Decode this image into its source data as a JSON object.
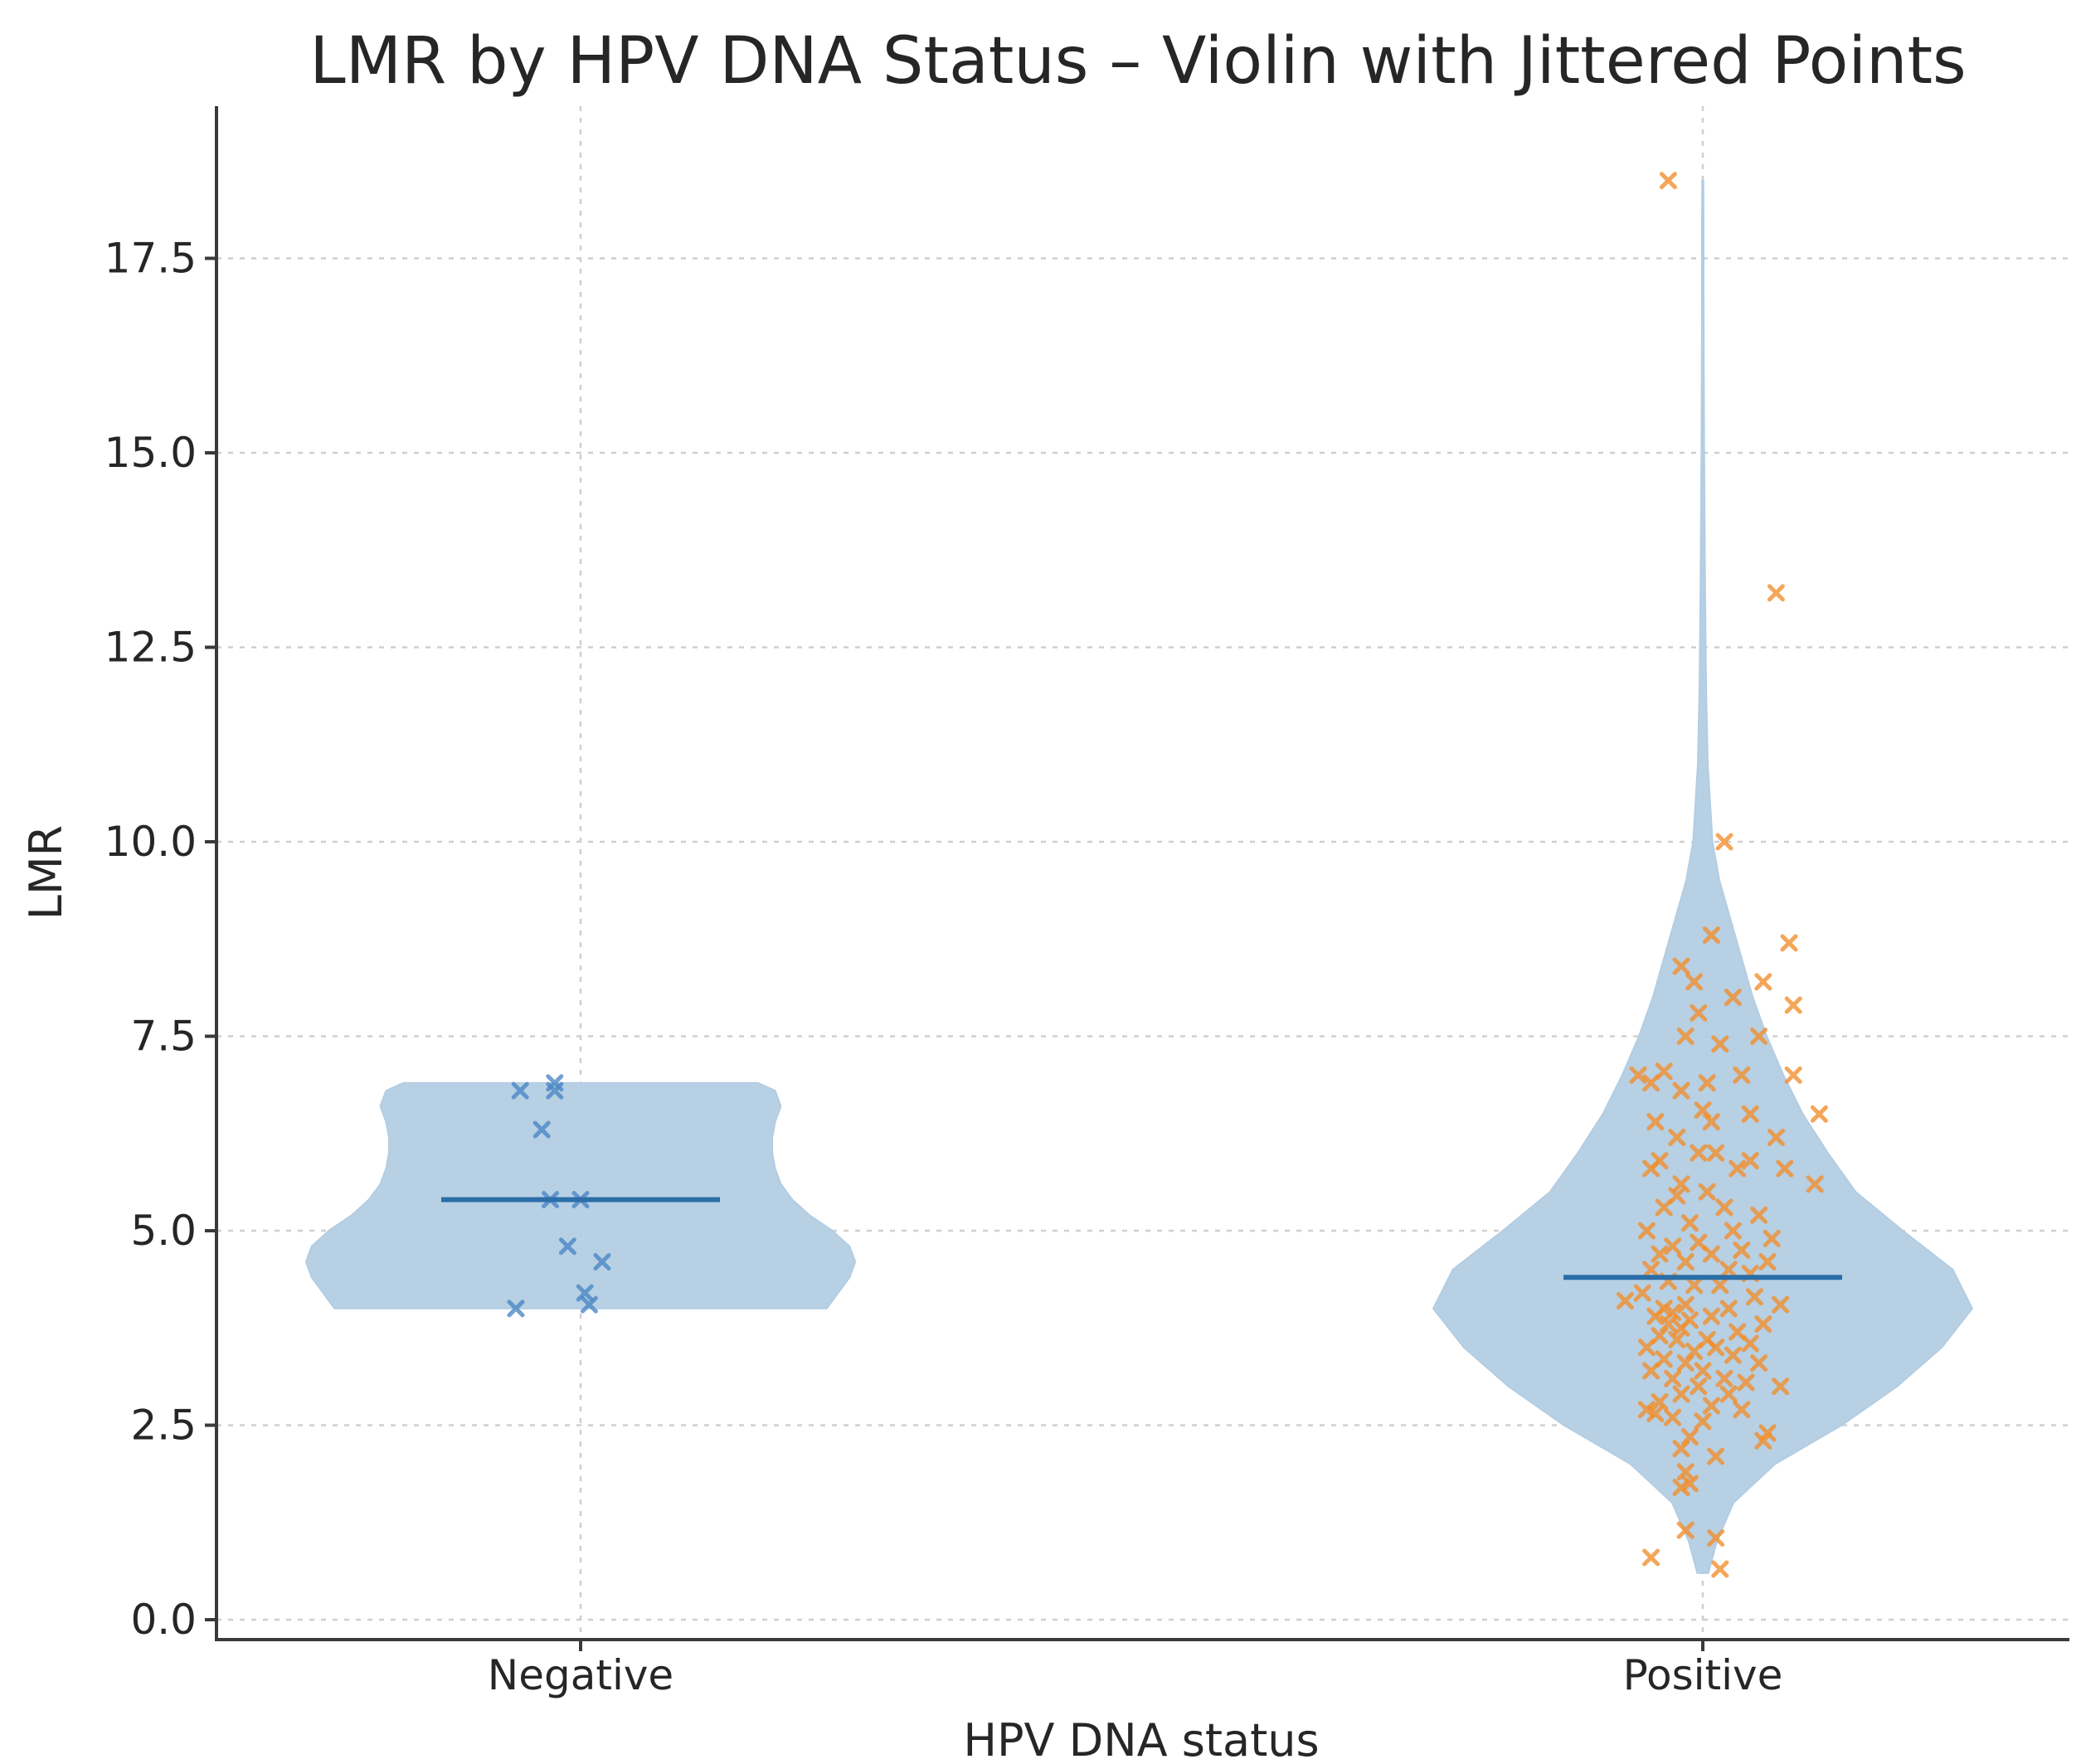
{
  "chart_data": {
    "type": "violin",
    "title": "LMR by HPV DNA Status – Violin with Jittered Points",
    "xlabel": "HPV DNA status",
    "ylabel": "LMR",
    "categories": [
      "Negative",
      "Positive"
    ],
    "ylim": [
      -0.3,
      19.3
    ],
    "yticks": [
      0.0,
      2.5,
      5.0,
      7.5,
      10.0,
      12.5,
      15.0,
      17.5
    ],
    "ytick_labels": [
      "0.0",
      "2.5",
      "5.0",
      "7.5",
      "10.0",
      "12.5",
      "15.0",
      "17.5"
    ],
    "grid": true,
    "violin_color": "#b3cde3",
    "median_color": "#2b6ea8",
    "series": [
      {
        "name": "Negative",
        "point_color": "#4a86c5",
        "median": 5.4,
        "range": [
          4.0,
          6.9
        ],
        "density_profile": [
          [
            4.0,
            0.86
          ],
          [
            4.2,
            0.9
          ],
          [
            4.4,
            0.94
          ],
          [
            4.6,
            0.96
          ],
          [
            4.8,
            0.94
          ],
          [
            5.0,
            0.88
          ],
          [
            5.2,
            0.8
          ],
          [
            5.4,
            0.74
          ],
          [
            5.6,
            0.7
          ],
          [
            5.8,
            0.68
          ],
          [
            6.0,
            0.67
          ],
          [
            6.2,
            0.67
          ],
          [
            6.4,
            0.68
          ],
          [
            6.6,
            0.7
          ],
          [
            6.8,
            0.68
          ],
          [
            6.9,
            0.62
          ]
        ],
        "points": [
          {
            "jitter": -0.14,
            "y": 6.8
          },
          {
            "jitter": -0.06,
            "y": 6.9
          },
          {
            "jitter": -0.06,
            "y": 6.8
          },
          {
            "jitter": -0.09,
            "y": 6.3
          },
          {
            "jitter": -0.07,
            "y": 5.4
          },
          {
            "jitter": 0.0,
            "y": 5.4
          },
          {
            "jitter": -0.03,
            "y": 4.8
          },
          {
            "jitter": 0.05,
            "y": 4.6
          },
          {
            "jitter": 0.01,
            "y": 4.2
          },
          {
            "jitter": 0.02,
            "y": 4.05
          },
          {
            "jitter": -0.15,
            "y": 4.0
          }
        ]
      },
      {
        "name": "Positive",
        "point_color": "#f28e2b",
        "median": 4.4,
        "range": [
          0.6,
          18.5
        ],
        "density_profile": [
          [
            0.6,
            0.02
          ],
          [
            1.0,
            0.05
          ],
          [
            1.5,
            0.11
          ],
          [
            2.0,
            0.26
          ],
          [
            2.5,
            0.5
          ],
          [
            3.0,
            0.7
          ],
          [
            3.5,
            0.86
          ],
          [
            4.0,
            0.97
          ],
          [
            4.5,
            0.9
          ],
          [
            5.0,
            0.72
          ],
          [
            5.5,
            0.55
          ],
          [
            6.0,
            0.45
          ],
          [
            6.5,
            0.36
          ],
          [
            7.0,
            0.29
          ],
          [
            7.5,
            0.23
          ],
          [
            8.0,
            0.18
          ],
          [
            8.5,
            0.14
          ],
          [
            9.0,
            0.1
          ],
          [
            9.5,
            0.06
          ],
          [
            10.0,
            0.035
          ],
          [
            11.0,
            0.018
          ],
          [
            12.0,
            0.012
          ],
          [
            13.0,
            0.009
          ],
          [
            14.0,
            0.007
          ],
          [
            15.0,
            0.005
          ],
          [
            16.0,
            0.004
          ],
          [
            17.0,
            0.003
          ],
          [
            18.0,
            0.003
          ],
          [
            18.5,
            0.002
          ]
        ],
        "points": [
          {
            "jitter": -0.08,
            "y": 18.5
          },
          {
            "jitter": 0.17,
            "y": 13.2
          },
          {
            "jitter": 0.05,
            "y": 10.0
          },
          {
            "jitter": 0.2,
            "y": 8.7
          },
          {
            "jitter": 0.02,
            "y": 8.8
          },
          {
            "jitter": -0.05,
            "y": 8.4
          },
          {
            "jitter": -0.02,
            "y": 8.2
          },
          {
            "jitter": 0.14,
            "y": 8.2
          },
          {
            "jitter": 0.07,
            "y": 8.0
          },
          {
            "jitter": 0.21,
            "y": 7.9
          },
          {
            "jitter": -0.01,
            "y": 7.8
          },
          {
            "jitter": 0.13,
            "y": 7.5
          },
          {
            "jitter": -0.04,
            "y": 7.5
          },
          {
            "jitter": 0.04,
            "y": 7.4
          },
          {
            "jitter": -0.09,
            "y": 7.05
          },
          {
            "jitter": -0.15,
            "y": 7.0
          },
          {
            "jitter": 0.09,
            "y": 7.0
          },
          {
            "jitter": 0.21,
            "y": 7.0
          },
          {
            "jitter": -0.12,
            "y": 6.9
          },
          {
            "jitter": 0.01,
            "y": 6.9
          },
          {
            "jitter": -0.05,
            "y": 6.8
          },
          {
            "jitter": 0.0,
            "y": 6.55
          },
          {
            "jitter": 0.11,
            "y": 6.5
          },
          {
            "jitter": 0.27,
            "y": 6.5
          },
          {
            "jitter": 0.02,
            "y": 6.4
          },
          {
            "jitter": -0.11,
            "y": 6.4
          },
          {
            "jitter": 0.17,
            "y": 6.2
          },
          {
            "jitter": -0.06,
            "y": 6.2
          },
          {
            "jitter": -0.01,
            "y": 6.0
          },
          {
            "jitter": 0.03,
            "y": 6.0
          },
          {
            "jitter": 0.11,
            "y": 5.9
          },
          {
            "jitter": -0.1,
            "y": 5.9
          },
          {
            "jitter": 0.08,
            "y": 5.8
          },
          {
            "jitter": -0.12,
            "y": 5.8
          },
          {
            "jitter": 0.19,
            "y": 5.8
          },
          {
            "jitter": 0.26,
            "y": 5.6
          },
          {
            "jitter": -0.05,
            "y": 5.6
          },
          {
            "jitter": 0.01,
            "y": 5.5
          },
          {
            "jitter": -0.06,
            "y": 5.45
          },
          {
            "jitter": -0.09,
            "y": 5.3
          },
          {
            "jitter": 0.05,
            "y": 5.3
          },
          {
            "jitter": 0.13,
            "y": 5.2
          },
          {
            "jitter": -0.03,
            "y": 5.1
          },
          {
            "jitter": 0.07,
            "y": 5.0
          },
          {
            "jitter": -0.13,
            "y": 5.0
          },
          {
            "jitter": 0.16,
            "y": 4.9
          },
          {
            "jitter": -0.01,
            "y": 4.85
          },
          {
            "jitter": -0.07,
            "y": 4.8
          },
          {
            "jitter": 0.09,
            "y": 4.75
          },
          {
            "jitter": -0.1,
            "y": 4.7
          },
          {
            "jitter": 0.02,
            "y": 4.7
          },
          {
            "jitter": 0.15,
            "y": 4.6
          },
          {
            "jitter": -0.04,
            "y": 4.6
          },
          {
            "jitter": 0.06,
            "y": 4.5
          },
          {
            "jitter": -0.12,
            "y": 4.5
          },
          {
            "jitter": 0.11,
            "y": 4.45
          },
          {
            "jitter": -0.08,
            "y": 4.35
          },
          {
            "jitter": 0.04,
            "y": 4.3
          },
          {
            "jitter": -0.02,
            "y": 4.3
          },
          {
            "jitter": -0.14,
            "y": 4.2
          },
          {
            "jitter": 0.12,
            "y": 4.15
          },
          {
            "jitter": -0.18,
            "y": 4.1
          },
          {
            "jitter": 0.18,
            "y": 4.05
          },
          {
            "jitter": -0.04,
            "y": 4.05
          },
          {
            "jitter": -0.09,
            "y": 4.0
          },
          {
            "jitter": 0.06,
            "y": 4.0
          },
          {
            "jitter": -0.07,
            "y": 3.95
          },
          {
            "jitter": -0.11,
            "y": 3.9
          },
          {
            "jitter": 0.02,
            "y": 3.9
          },
          {
            "jitter": -0.03,
            "y": 3.85
          },
          {
            "jitter": 0.14,
            "y": 3.8
          },
          {
            "jitter": -0.08,
            "y": 3.8
          },
          {
            "jitter": -0.05,
            "y": 3.75
          },
          {
            "jitter": 0.08,
            "y": 3.7
          },
          {
            "jitter": -0.1,
            "y": 3.65
          },
          {
            "jitter": 0.01,
            "y": 3.6
          },
          {
            "jitter": -0.06,
            "y": 3.6
          },
          {
            "jitter": 0.11,
            "y": 3.55
          },
          {
            "jitter": -0.13,
            "y": 3.5
          },
          {
            "jitter": 0.03,
            "y": 3.5
          },
          {
            "jitter": -0.02,
            "y": 3.45
          },
          {
            "jitter": 0.07,
            "y": 3.4
          },
          {
            "jitter": -0.09,
            "y": 3.35
          },
          {
            "jitter": 0.13,
            "y": 3.3
          },
          {
            "jitter": -0.04,
            "y": 3.3
          },
          {
            "jitter": 0.0,
            "y": 3.2
          },
          {
            "jitter": -0.12,
            "y": 3.2
          },
          {
            "jitter": 0.05,
            "y": 3.1
          },
          {
            "jitter": -0.07,
            "y": 3.1
          },
          {
            "jitter": 0.1,
            "y": 3.05
          },
          {
            "jitter": -0.01,
            "y": 3.0
          },
          {
            "jitter": 0.18,
            "y": 3.0
          },
          {
            "jitter": -0.05,
            "y": 2.9
          },
          {
            "jitter": 0.06,
            "y": 2.9
          },
          {
            "jitter": -0.1,
            "y": 2.8
          },
          {
            "jitter": 0.02,
            "y": 2.75
          },
          {
            "jitter": -0.13,
            "y": 2.7
          },
          {
            "jitter": 0.09,
            "y": 2.7
          },
          {
            "jitter": -0.11,
            "y": 2.65
          },
          {
            "jitter": -0.07,
            "y": 2.6
          },
          {
            "jitter": 0.0,
            "y": 2.55
          },
          {
            "jitter": 0.15,
            "y": 2.4
          },
          {
            "jitter": -0.03,
            "y": 2.35
          },
          {
            "jitter": 0.14,
            "y": 2.3
          },
          {
            "jitter": -0.05,
            "y": 2.2
          },
          {
            "jitter": 0.03,
            "y": 2.1
          },
          {
            "jitter": -0.04,
            "y": 1.9
          },
          {
            "jitter": -0.03,
            "y": 1.75
          },
          {
            "jitter": -0.05,
            "y": 1.7
          },
          {
            "jitter": -0.04,
            "y": 1.15
          },
          {
            "jitter": 0.03,
            "y": 1.05
          },
          {
            "jitter": -0.12,
            "y": 0.8
          },
          {
            "jitter": 0.04,
            "y": 0.65
          }
        ]
      }
    ]
  }
}
